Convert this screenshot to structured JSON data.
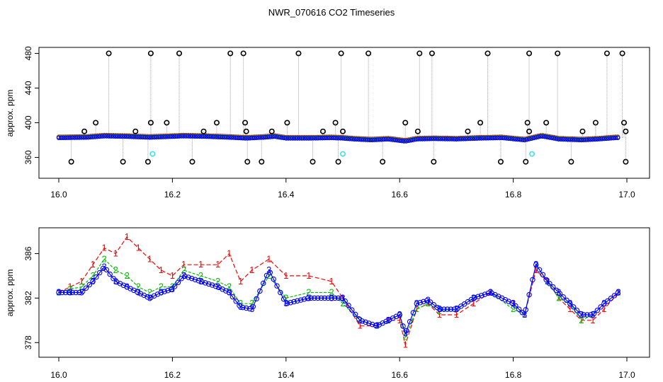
{
  "title": "NWR_070616  CO2 Timeseries",
  "chart_data": [
    {
      "type": "scatter",
      "ylabel": "approx. ppm",
      "xlim": [
        16.0,
        17.0
      ],
      "ylim": [
        340,
        482
      ],
      "xticks": [
        "16.0",
        "16.2",
        "16.4",
        "16.6",
        "16.8",
        "17.0"
      ],
      "yticks": [
        "360",
        "400",
        "440",
        "480"
      ],
      "colors": {
        "baseline": "#0000ff",
        "series1": "#ff0000",
        "series2": "#00bb00",
        "outlier": "#000000",
        "cal": "#40e0e0",
        "spike": "#a0a0a0"
      },
      "baseline_points": [
        [
          16.0,
          382.5
        ],
        [
          16.05,
          383
        ],
        [
          16.08,
          384.5
        ],
        [
          16.12,
          384
        ],
        [
          16.16,
          383
        ],
        [
          16.18,
          383.5
        ],
        [
          16.22,
          384.5
        ],
        [
          16.26,
          384
        ],
        [
          16.3,
          383
        ],
        [
          16.33,
          382
        ],
        [
          16.36,
          383
        ],
        [
          16.38,
          384
        ],
        [
          16.4,
          382
        ],
        [
          16.44,
          382
        ],
        [
          16.48,
          382.5
        ],
        [
          16.5,
          382
        ],
        [
          16.52,
          381
        ],
        [
          16.55,
          380
        ],
        [
          16.58,
          381
        ],
        [
          16.61,
          378.5
        ],
        [
          16.63,
          381
        ],
        [
          16.66,
          381.5
        ],
        [
          16.7,
          381
        ],
        [
          16.74,
          382
        ],
        [
          16.78,
          382.5
        ],
        [
          16.82,
          380
        ],
        [
          16.85,
          384.5
        ],
        [
          16.88,
          381
        ],
        [
          16.92,
          380
        ],
        [
          16.95,
          381
        ],
        [
          16.98,
          382.5
        ]
      ],
      "outliers_high": [
        16.088,
        16.162,
        16.212,
        16.302,
        16.325,
        16.422,
        16.497,
        16.545,
        16.635,
        16.657,
        16.755,
        16.828,
        16.878,
        16.965,
        16.992
      ],
      "outliers_mid": [
        [
          16.045,
          390
        ],
        [
          16.065,
          400
        ],
        [
          16.135,
          390
        ],
        [
          16.162,
          400
        ],
        [
          16.19,
          400
        ],
        [
          16.255,
          390
        ],
        [
          16.278,
          400
        ],
        [
          16.328,
          400
        ],
        [
          16.33,
          390
        ],
        [
          16.375,
          390
        ],
        [
          16.402,
          400
        ],
        [
          16.465,
          390
        ],
        [
          16.487,
          400
        ],
        [
          16.5,
          390
        ],
        [
          16.61,
          400
        ],
        [
          16.632,
          390
        ],
        [
          16.72,
          390
        ],
        [
          16.742,
          400
        ],
        [
          16.825,
          400
        ],
        [
          16.828,
          390
        ],
        [
          16.858,
          400
        ],
        [
          16.922,
          390
        ],
        [
          16.945,
          400
        ],
        [
          16.995,
          400
        ],
        [
          16.998,
          390
        ]
      ],
      "outliers_low": [
        16.022,
        16.113,
        16.157,
        16.235,
        16.332,
        16.357,
        16.447,
        16.492,
        16.57,
        16.66,
        16.778,
        16.822,
        16.902,
        16.998
      ],
      "cal_points": [
        [
          16.165,
          364
        ],
        [
          16.5,
          364
        ],
        [
          16.833,
          364
        ]
      ]
    },
    {
      "type": "line",
      "ylabel": "approx. ppm",
      "xlim": [
        16.0,
        17.0
      ],
      "ylim": [
        377,
        388
      ],
      "xticks": [
        "16.0",
        "16.2",
        "16.4",
        "16.6",
        "16.8",
        "17.0"
      ],
      "yticks": [
        "378",
        "382",
        "386"
      ],
      "series": [
        {
          "name": "1",
          "color": "#ff0000",
          "x": [
            16.0,
            16.02,
            16.04,
            16.06,
            16.08,
            16.1,
            16.12,
            16.14,
            16.16,
            16.18,
            16.2,
            16.22,
            16.25,
            16.28,
            16.3,
            16.32,
            16.34,
            16.37,
            16.4,
            16.44,
            16.48,
            16.5,
            16.53,
            16.56,
            16.58,
            16.6,
            16.61,
            16.63,
            16.65,
            16.67,
            16.7,
            16.73,
            16.76,
            16.8,
            16.82,
            16.84,
            16.86,
            16.88,
            16.9,
            16.92,
            16.94,
            16.96,
            16.985
          ],
          "y": [
            382.5,
            383,
            383.5,
            385,
            386.5,
            386,
            387.5,
            386.5,
            385.5,
            384.5,
            384,
            385,
            385,
            385,
            386,
            383.5,
            384.5,
            385.5,
            384,
            384,
            383.5,
            382,
            379.5,
            379.5,
            380,
            380,
            377.8,
            381,
            381.5,
            380.5,
            380.5,
            381.5,
            382.5,
            381.5,
            380.5,
            384.5,
            383.5,
            382,
            381,
            380,
            380,
            381,
            382.5
          ]
        },
        {
          "name": "2",
          "color": "#00bb00",
          "x": [
            16.0,
            16.02,
            16.04,
            16.06,
            16.08,
            16.1,
            16.12,
            16.14,
            16.16,
            16.18,
            16.2,
            16.22,
            16.25,
            16.28,
            16.3,
            16.32,
            16.34,
            16.37,
            16.4,
            16.44,
            16.48,
            16.5,
            16.53,
            16.56,
            16.58,
            16.6,
            16.61,
            16.63,
            16.65,
            16.67,
            16.7,
            16.73,
            16.76,
            16.8,
            16.82,
            16.84,
            16.86,
            16.88,
            16.9,
            16.92,
            16.94,
            16.96,
            16.985
          ],
          "y": [
            382.5,
            382.8,
            383,
            384,
            385.5,
            384.5,
            384,
            383,
            382.5,
            383,
            383,
            384.5,
            384,
            383.5,
            383,
            381.5,
            381.5,
            384,
            382,
            382.5,
            382.5,
            381.5,
            380,
            379.5,
            380,
            380.5,
            378.5,
            381,
            381.5,
            380.8,
            381,
            382,
            382.5,
            381,
            380.5,
            385,
            383.5,
            382,
            381.5,
            380,
            380.5,
            381.5,
            382.5
          ]
        },
        {
          "name": "3",
          "color": "#0000ff",
          "x": [
            16.0,
            16.02,
            16.04,
            16.06,
            16.08,
            16.1,
            16.12,
            16.14,
            16.16,
            16.18,
            16.2,
            16.22,
            16.25,
            16.28,
            16.3,
            16.32,
            16.34,
            16.37,
            16.4,
            16.44,
            16.48,
            16.5,
            16.53,
            16.56,
            16.58,
            16.6,
            16.61,
            16.63,
            16.65,
            16.67,
            16.7,
            16.73,
            16.76,
            16.8,
            16.82,
            16.84,
            16.86,
            16.88,
            16.9,
            16.92,
            16.94,
            16.96,
            16.985
          ],
          "y": [
            382.5,
            382.5,
            382.5,
            383.5,
            384.8,
            383.5,
            383,
            382.5,
            382,
            382.5,
            382.8,
            384,
            383.5,
            383,
            382.5,
            381.2,
            381,
            384.5,
            381.5,
            382,
            382,
            382,
            380,
            379.5,
            380,
            380.5,
            378.8,
            381.5,
            381.8,
            381,
            381,
            382,
            382.5,
            381.5,
            380.5,
            385,
            383.5,
            382.5,
            381.5,
            380.5,
            380.5,
            381.5,
            382.5
          ]
        }
      ]
    }
  ]
}
